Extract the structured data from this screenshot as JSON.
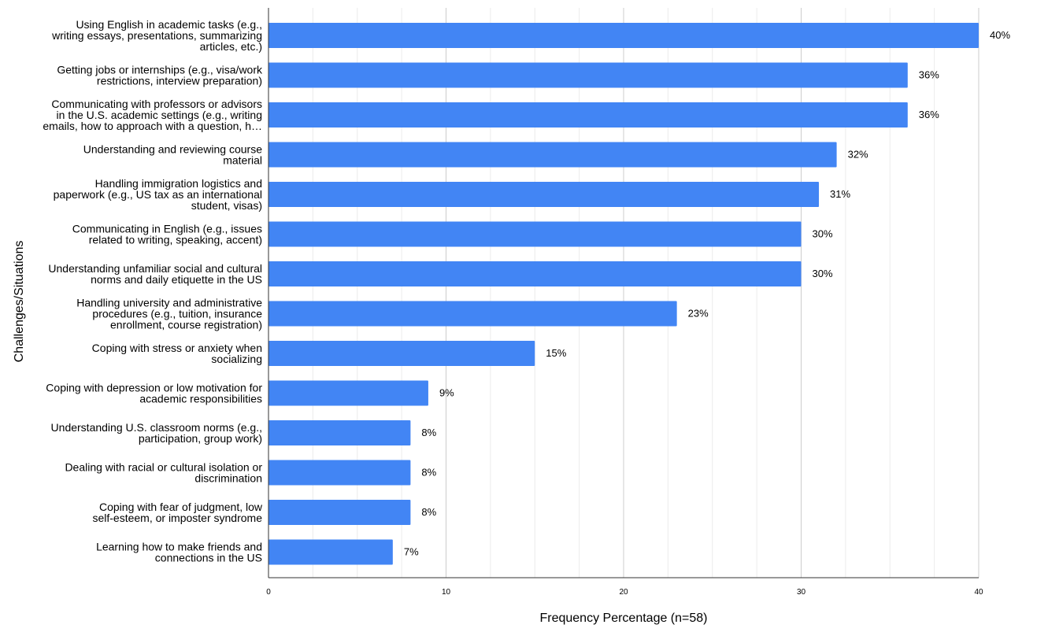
{
  "chart_data": {
    "type": "bar",
    "orientation": "horizontal",
    "title": "",
    "xlabel": "Frequency Percentage (n=58)",
    "ylabel": "Challenges/Situations",
    "xlim": [
      0,
      40
    ],
    "xticks": [
      0,
      10,
      20,
      30,
      40
    ],
    "grid": true,
    "bar_color": "#4285f4",
    "categories": [
      [
        "Using English in academic tasks (e.g.,",
        "writing essays, presentations, summarizing",
        "articles, etc.)"
      ],
      [
        "Getting jobs or internships (e.g., visa/work",
        "restrictions, interview preparation)"
      ],
      [
        "Communicating with professors or advisors",
        "in the U.S. academic settings (e.g., writing",
        "emails, how to approach with a question, h…"
      ],
      [
        "Understanding and reviewing course",
        "material"
      ],
      [
        "Handling immigration logistics and",
        "paperwork (e.g., US tax as an international",
        "student, visas)"
      ],
      [
        "Communicating in English (e.g., issues",
        "related to writing, speaking, accent)"
      ],
      [
        "Understanding unfamiliar social and cultural",
        "norms and daily etiquette in the US"
      ],
      [
        "Handling university and administrative",
        "procedures (e.g., tuition, insurance",
        "enrollment, course registration)"
      ],
      [
        "Coping with stress or anxiety when",
        "socializing"
      ],
      [
        "Coping with depression or low motivation for",
        "academic responsibilities"
      ],
      [
        "Understanding U.S. classroom norms (e.g.,",
        "participation, group work)"
      ],
      [
        "Dealing with racial or cultural isolation or",
        "discrimination"
      ],
      [
        "Coping with fear of judgment, low",
        "self-esteem, or imposter syndrome"
      ],
      [
        "Learning how to make friends and",
        "connections in the US"
      ]
    ],
    "values": [
      40,
      36,
      36,
      32,
      31,
      30,
      30,
      23,
      15,
      9,
      8,
      8,
      8,
      7
    ],
    "data_labels": [
      "40%",
      "36%",
      "36%",
      "32%",
      "31%",
      "30%",
      "30%",
      "23%",
      "15%",
      "9%",
      "8%",
      "8%",
      "8%",
      "7%"
    ]
  }
}
